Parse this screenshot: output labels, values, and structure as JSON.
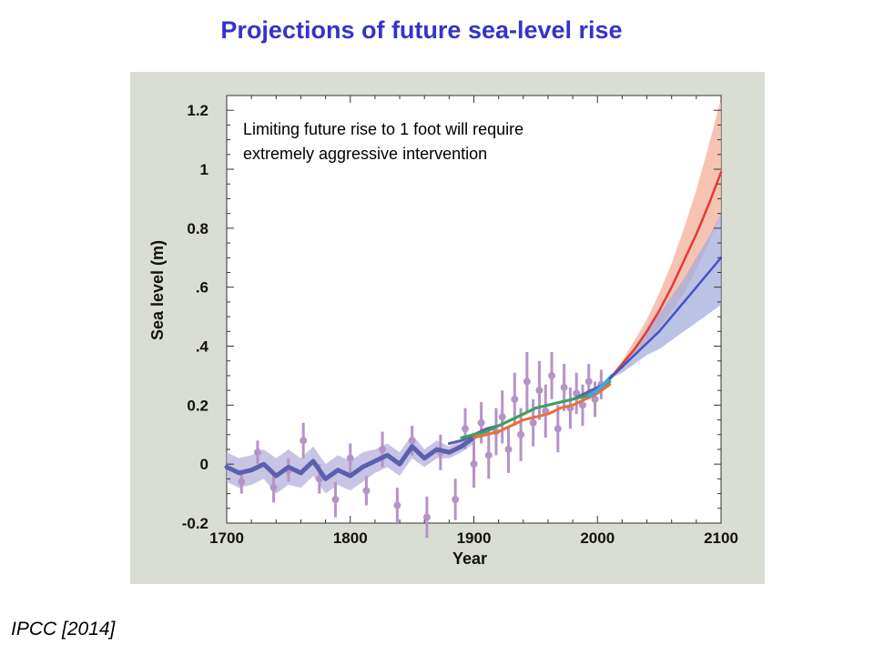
{
  "slide": {
    "title": "Projections of future sea-level rise",
    "citation": "IPCC [2014]"
  },
  "colors": {
    "title": "#3333cc",
    "panel_background": "#d9ddd4",
    "historical_reconstruction": "#5c5fae",
    "historical_uncertainty": "#b9b5e0",
    "tide_gauge_points": "#b593c7",
    "tide_gauge_green": "#3aa35b",
    "tide_gauge_orange": "#f06b3a",
    "satellite": "#3fa7de",
    "high_scenario": "#e23a3a",
    "high_scenario_band": "#f5b8a6",
    "low_scenario": "#4454c2",
    "low_scenario_band": "#a6acdd"
  },
  "chart_data": {
    "type": "line",
    "title": "",
    "xlabel": "Year",
    "ylabel": "Sea level (m)",
    "xlim": [
      1700,
      2100
    ],
    "ylim": [
      -0.2,
      1.25
    ],
    "x_ticks": [
      1700,
      1800,
      1900,
      2000,
      2100
    ],
    "x_tick_labels": [
      "1700",
      "1800",
      "1900",
      "2000",
      "2100"
    ],
    "y_ticks": [
      -0.2,
      0,
      0.2,
      0.4,
      0.6,
      0.8,
      1,
      1.2
    ],
    "y_tick_labels": [
      "-0.2",
      "0",
      "0.2",
      ".4",
      ".6",
      "0.8",
      "1",
      "1.2"
    ],
    "annotation": "Limiting future rise to 1 foot will require extremely aggressive intervention",
    "series": [
      {
        "role": "historical",
        "x": [
          1700,
          1710,
          1720,
          1730,
          1740,
          1750,
          1760,
          1770,
          1780,
          1790,
          1800,
          1810,
          1820,
          1830,
          1840,
          1850,
          1860,
          1870,
          1880,
          1890,
          1900
        ],
        "values": [
          -0.01,
          -0.03,
          -0.02,
          0.0,
          -0.04,
          -0.01,
          -0.03,
          0.01,
          -0.05,
          -0.02,
          -0.04,
          -0.01,
          0.01,
          0.03,
          0.0,
          0.06,
          0.02,
          0.05,
          0.04,
          0.06,
          0.09
        ],
        "band_width": [
          0.05,
          0.05,
          0.05,
          0.05,
          0.06,
          0.06,
          0.05,
          0.05,
          0.05,
          0.05,
          0.05,
          0.05,
          0.04,
          0.04,
          0.04,
          0.04,
          0.03,
          0.03,
          0.02,
          0.02,
          0.02
        ]
      },
      {
        "role": "tide_gauge_green",
        "x": [
          1890,
          1900,
          1910,
          1920,
          1930,
          1940,
          1950,
          1960,
          1970,
          1980,
          1990,
          2000,
          2010
        ],
        "values": [
          0.09,
          0.1,
          0.11,
          0.13,
          0.15,
          0.17,
          0.19,
          0.2,
          0.21,
          0.22,
          0.23,
          0.25,
          0.28
        ]
      },
      {
        "role": "tide_gauge_orange",
        "x": [
          1900,
          1910,
          1920,
          1930,
          1940,
          1950,
          1960,
          1970,
          1980,
          1990,
          2000,
          2010
        ],
        "values": [
          0.09,
          0.1,
          0.11,
          0.13,
          0.15,
          0.16,
          0.17,
          0.19,
          0.2,
          0.22,
          0.24,
          0.27
        ]
      },
      {
        "role": "tide_gauge_blue",
        "x": [
          1880,
          1890,
          1900,
          1910,
          1920,
          1930,
          1940,
          1950,
          1960,
          1970,
          1980,
          1990,
          2000,
          2010
        ],
        "values": [
          0.07,
          0.08,
          0.1,
          0.12,
          0.13,
          0.15,
          0.17,
          0.19,
          0.2,
          0.21,
          0.22,
          0.24,
          0.26,
          0.28
        ]
      },
      {
        "role": "satellite",
        "x": [
          1993,
          2000,
          2005,
          2012
        ],
        "values": [
          0.23,
          0.25,
          0.27,
          0.3
        ]
      },
      {
        "role": "high_scenario",
        "x": [
          2010,
          2020,
          2030,
          2040,
          2050,
          2060,
          2070,
          2080,
          2090,
          2100
        ],
        "values": [
          0.29,
          0.34,
          0.39,
          0.45,
          0.52,
          0.6,
          0.69,
          0.78,
          0.88,
          0.99
        ],
        "low": [
          0.29,
          0.32,
          0.37,
          0.41,
          0.46,
          0.52,
          0.58,
          0.66,
          0.75,
          0.85
        ],
        "high": [
          0.29,
          0.35,
          0.42,
          0.49,
          0.58,
          0.68,
          0.8,
          0.93,
          1.08,
          1.24
        ]
      },
      {
        "role": "low_scenario",
        "x": [
          2010,
          2020,
          2030,
          2040,
          2050,
          2060,
          2070,
          2080,
          2090,
          2100
        ],
        "values": [
          0.29,
          0.33,
          0.37,
          0.41,
          0.45,
          0.5,
          0.55,
          0.6,
          0.65,
          0.7
        ],
        "low": [
          0.29,
          0.31,
          0.34,
          0.37,
          0.39,
          0.42,
          0.45,
          0.48,
          0.51,
          0.54
        ],
        "high": [
          0.29,
          0.34,
          0.39,
          0.45,
          0.51,
          0.57,
          0.63,
          0.7,
          0.77,
          0.85
        ]
      }
    ],
    "tide_gauge_points": {
      "x": [
        1712,
        1725,
        1738,
        1750,
        1762,
        1775,
        1788,
        1800,
        1813,
        1826,
        1838,
        1850,
        1862,
        1873,
        1885,
        1893,
        1900,
        1906,
        1912,
        1918,
        1923,
        1928,
        1933,
        1938,
        1943,
        1948,
        1953,
        1958,
        1963,
        1968,
        1973,
        1978,
        1983,
        1988,
        1993,
        1998,
        2003
      ],
      "values": [
        -0.06,
        0.04,
        -0.08,
        -0.02,
        0.08,
        -0.05,
        -0.12,
        0.02,
        -0.09,
        0.05,
        -0.14,
        0.08,
        -0.18,
        0.04,
        -0.12,
        0.12,
        0.0,
        0.14,
        0.03,
        0.11,
        0.16,
        0.05,
        0.22,
        0.1,
        0.28,
        0.14,
        0.25,
        0.18,
        0.3,
        0.12,
        0.26,
        0.19,
        0.24,
        0.2,
        0.28,
        0.22,
        0.27
      ],
      "error": [
        0.04,
        0.04,
        0.05,
        0.04,
        0.06,
        0.05,
        0.06,
        0.05,
        0.05,
        0.06,
        0.06,
        0.05,
        0.07,
        0.06,
        0.07,
        0.07,
        0.08,
        0.07,
        0.08,
        0.08,
        0.09,
        0.08,
        0.09,
        0.09,
        0.1,
        0.08,
        0.1,
        0.09,
        0.08,
        0.08,
        0.08,
        0.07,
        0.07,
        0.07,
        0.06,
        0.06,
        0.05
      ]
    }
  }
}
